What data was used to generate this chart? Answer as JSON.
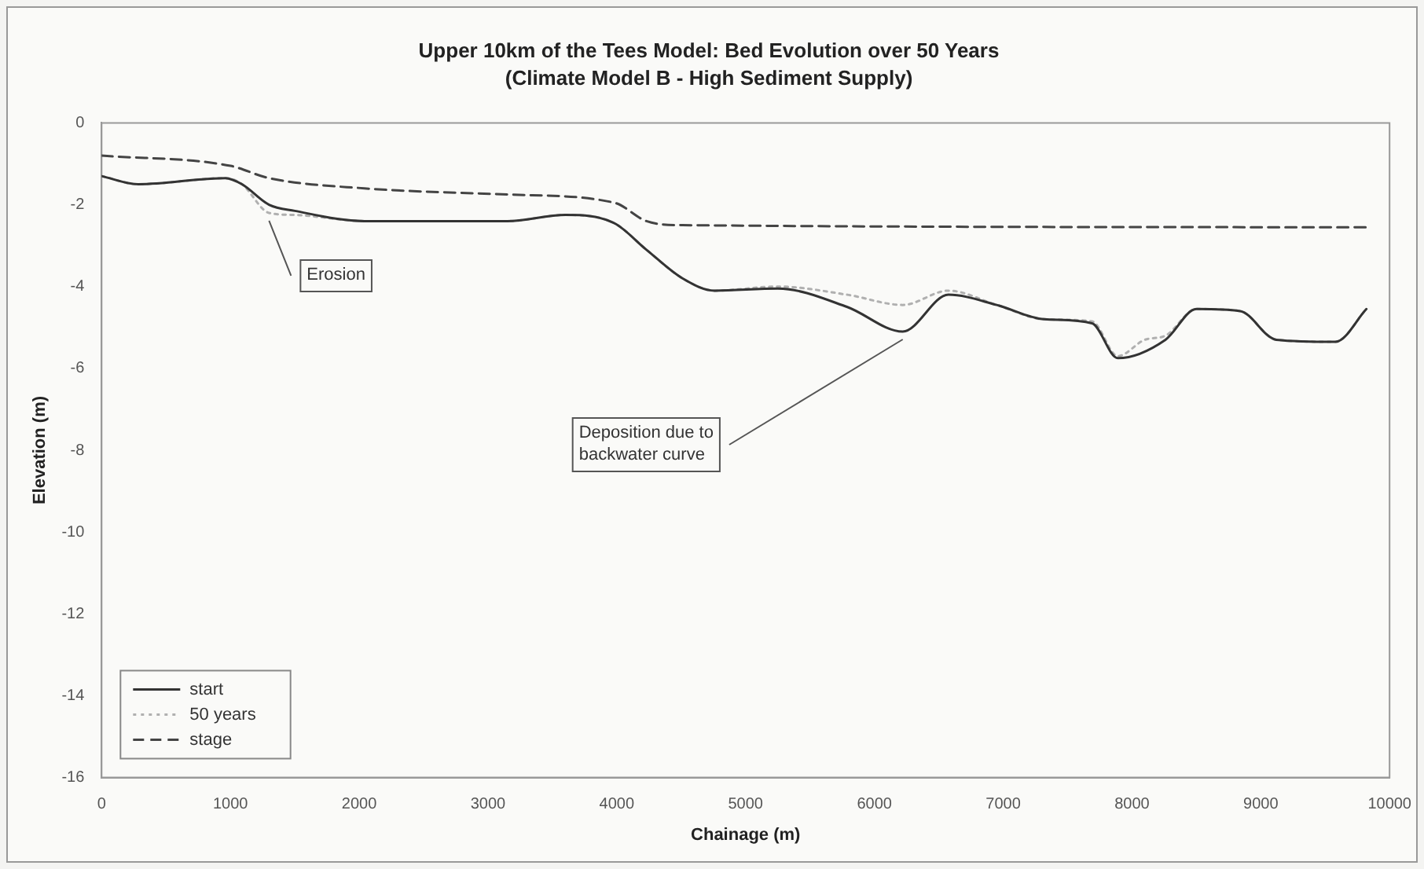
{
  "chart_data": {
    "type": "line",
    "title": "Upper 10km of the Tees Model: Bed Evolution over 50 Years",
    "subtitle": "(Climate Model B - High Sediment Supply)",
    "xlabel": "Chainage (m)",
    "ylabel": "Elevation (m)",
    "xlim": [
      0,
      10000
    ],
    "xticks": [
      0,
      1000,
      2000,
      3000,
      4000,
      5000,
      6000,
      7000,
      8000,
      9000,
      10000
    ],
    "ylim": [
      -16,
      0
    ],
    "yticks": [
      -16,
      -14,
      -12,
      -10,
      -8,
      -6,
      -4,
      -2,
      0
    ],
    "grid": false,
    "legend": "bottom left",
    "marker": "none",
    "series": [
      {
        "name": "start",
        "color": "#333333",
        "line_style": "solid",
        "x": [
          0,
          285,
          960,
          1090,
          1300,
          1500,
          2040,
          3150,
          3600,
          3980,
          4230,
          4510,
          4760,
          5250,
          5790,
          6220,
          6575,
          6950,
          7320,
          7690,
          7890,
          8260,
          8500,
          8840,
          9120,
          9580,
          9820
        ],
        "values": [
          -1.3,
          -1.5,
          -1.35,
          -1.5,
          -2.0,
          -2.15,
          -2.4,
          -2.4,
          -2.25,
          -2.45,
          -3.1,
          -3.8,
          -4.1,
          -4.05,
          -4.5,
          -5.1,
          -4.2,
          -4.45,
          -4.8,
          -4.9,
          -5.75,
          -5.3,
          -4.55,
          -4.6,
          -5.3,
          -5.35,
          -4.55
        ]
      },
      {
        "name": "50 years",
        "color": "#b0b0b0",
        "line_style": "dotted",
        "x": [
          0,
          285,
          960,
          1090,
          1300,
          1500,
          2040,
          3150,
          3600,
          3980,
          4230,
          4510,
          4760,
          5250,
          5790,
          6220,
          6575,
          6950,
          7320,
          7690,
          7890,
          8100,
          8260,
          8500,
          8840,
          9120,
          9580,
          9820
        ],
        "values": [
          -1.3,
          -1.5,
          -1.35,
          -1.5,
          -2.2,
          -2.25,
          -2.4,
          -2.4,
          -2.25,
          -2.45,
          -3.1,
          -3.8,
          -4.1,
          -4.0,
          -4.2,
          -4.45,
          -4.1,
          -4.45,
          -4.8,
          -4.85,
          -5.7,
          -5.3,
          -5.2,
          -4.55,
          -4.6,
          -5.3,
          -5.35,
          -4.55
        ]
      },
      {
        "name": "stage",
        "color": "#444444",
        "line_style": "dashed",
        "x": [
          0,
          1000,
          1300,
          2040,
          3150,
          3980,
          4230,
          4510,
          9820
        ],
        "values": [
          -0.8,
          -1.05,
          -1.35,
          -1.6,
          -1.75,
          -1.95,
          -2.4,
          -2.5,
          -2.55
        ]
      }
    ],
    "annotations": [
      {
        "text": "Erosion",
        "x": 1300,
        "y": -2.2
      },
      {
        "text": "Deposition due to\nbackwater curve",
        "x": 6220,
        "y": -5.1
      }
    ]
  }
}
